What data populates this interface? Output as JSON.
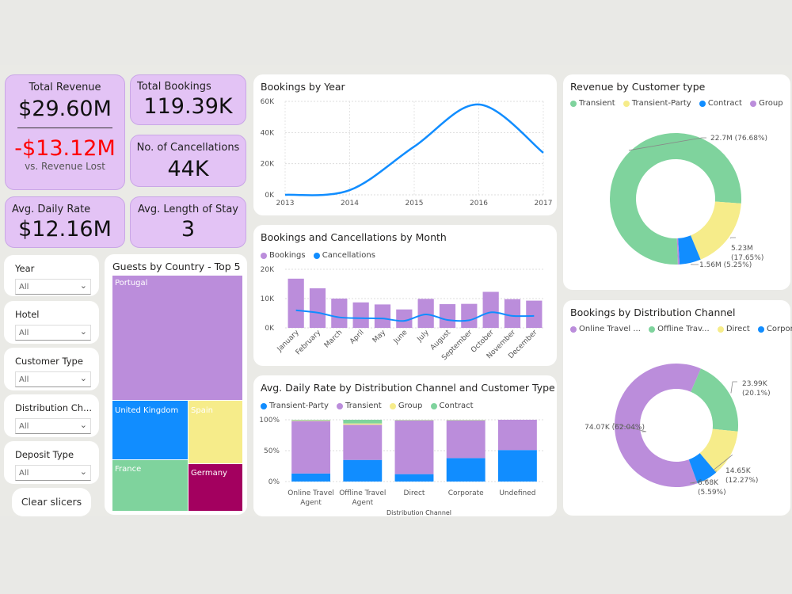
{
  "kpis": {
    "total_revenue": {
      "label": "Total Revenue",
      "value": "$29.60M",
      "sub_value": "-$13.12M",
      "sub_label": "vs. Revenue Lost"
    },
    "total_bookings": {
      "label": "Total Bookings",
      "value": "119.39K"
    },
    "cancellations": {
      "label": "No. of Cancellations",
      "value": "44K"
    },
    "adr": {
      "label": "Avg. Daily Rate",
      "value": "$12.16M"
    },
    "los": {
      "label": "Avg. Length of Stay",
      "value": "3"
    }
  },
  "slicers": [
    {
      "label": "Year",
      "value": "All"
    },
    {
      "label": "Hotel",
      "value": "All"
    },
    {
      "label": "Customer Type",
      "value": "All"
    },
    {
      "label": "Distribution Ch...",
      "value": "All"
    },
    {
      "label": "Deposit Type",
      "value": "All"
    }
  ],
  "clear_button": "Clear slicers",
  "colors": {
    "purple": "#bb8ddb",
    "blue": "#118dff",
    "yellow": "#f6ec8a",
    "green": "#7fd39d",
    "maroon": "#a3005f",
    "negative": "#ff0000"
  },
  "chart_data": [
    {
      "id": "bookings_by_year",
      "type": "line",
      "title": "Bookings by Year",
      "x": [
        "2013",
        "2014",
        "2015",
        "2016",
        "2017"
      ],
      "values": [
        0,
        3000,
        31000,
        58000,
        27000
      ],
      "y_ticks": [
        "0K",
        "20K",
        "40K",
        "60K"
      ],
      "ylim": [
        0,
        60000
      ],
      "grid": true
    },
    {
      "id": "bookings_cancellations_month",
      "type": "bar",
      "title": "Bookings and Cancellations by Month",
      "categories": [
        "January",
        "February",
        "March",
        "April",
        "May",
        "June",
        "July",
        "August",
        "September",
        "October",
        "November",
        "December"
      ],
      "series": [
        {
          "name": "Bookings",
          "values": [
            16800,
            13500,
            10000,
            8700,
            8000,
            6300,
            9900,
            8100,
            8200,
            12300,
            9800,
            9300
          ]
        },
        {
          "name": "Cancellations",
          "values": [
            6000,
            5200,
            3600,
            3300,
            3200,
            2400,
            4600,
            2700,
            2600,
            5300,
            4100,
            4100
          ]
        }
      ],
      "y_ticks": [
        "0K",
        "10K",
        "20K"
      ],
      "ylim": [
        0,
        20000
      ],
      "legend": "top-left"
    },
    {
      "id": "adr_by_channel",
      "type": "bar",
      "stacked": true,
      "title": "Avg. Daily Rate by Distribution Channel and Customer Type",
      "categories": [
        "Online Travel Agent",
        "Offline Travel Agent",
        "Direct",
        "Corporate",
        "Undefined"
      ],
      "category_lines": [
        [
          "Online Travel",
          "Agent"
        ],
        [
          "Offline Travel",
          "Agent"
        ],
        [
          "Direct"
        ],
        [
          "Corporate"
        ],
        [
          "Undefined"
        ]
      ],
      "xlabel": "Distribution Channel",
      "series": [
        {
          "name": "Transient-Party",
          "values": [
            13,
            35,
            12,
            38,
            51
          ]
        },
        {
          "name": "Transient",
          "values": [
            85,
            57,
            87,
            61,
            49
          ]
        },
        {
          "name": "Group",
          "values": [
            1,
            2,
            0.5,
            0.5,
            0
          ]
        },
        {
          "name": "Contract",
          "values": [
            1,
            6,
            0.5,
            0.5,
            0
          ]
        }
      ],
      "y_ticks": [
        "0%",
        "50%",
        "100%"
      ],
      "ylim": [
        0,
        100
      ]
    },
    {
      "id": "guests_by_country",
      "type": "treemap",
      "title": "Guests by Country - Top 5",
      "items": [
        {
          "label": "Portugal",
          "color": "#bb8ddb"
        },
        {
          "label": "United Kingdom",
          "color": "#118dff"
        },
        {
          "label": "Spain",
          "color": "#f6ec8a"
        },
        {
          "label": "France",
          "color": "#7fd39d"
        },
        {
          "label": "Germany",
          "color": "#a3005f"
        }
      ]
    },
    {
      "id": "revenue_by_customer_type",
      "type": "pie",
      "donut": true,
      "title": "Revenue by Customer type",
      "series": [
        {
          "name": "Transient",
          "color": "#7fd39d"
        },
        {
          "name": "Transient-Party",
          "color": "#f6ec8a"
        },
        {
          "name": "Contract",
          "color": "#118dff"
        },
        {
          "name": "Group",
          "color": "#bb8ddb"
        }
      ],
      "slices": [
        {
          "name": "Transient",
          "value": 76.68,
          "label_lines": [
            "22.7M (76.68%)"
          ]
        },
        {
          "name": "Transient-Party",
          "value": 17.65,
          "label_lines": [
            "5.23M",
            "(17.65%)"
          ]
        },
        {
          "name": "Contract",
          "value": 5.25,
          "label_lines": [
            "1.56M (5.25%)"
          ]
        },
        {
          "name": "Group",
          "value": 0.42,
          "label_lines": []
        }
      ]
    },
    {
      "id": "bookings_by_channel",
      "type": "pie",
      "donut": true,
      "title": "Bookings by Distribution Channel",
      "series": [
        {
          "name": "Online Travel ...",
          "color": "#bb8ddb"
        },
        {
          "name": "Offline Trav...",
          "color": "#7fd39d"
        },
        {
          "name": "Direct",
          "color": "#f6ec8a"
        },
        {
          "name": "Corporate",
          "color": "#118dff"
        }
      ],
      "slices": [
        {
          "name": "Online Travel ...",
          "value": 62.04,
          "label_lines": [
            "74.07K (62.04%)"
          ]
        },
        {
          "name": "Offline Trav...",
          "value": 20.1,
          "label_lines": [
            "23.99K",
            "(20.1%)"
          ]
        },
        {
          "name": "Direct",
          "value": 12.27,
          "label_lines": [
            "14.65K",
            "(12.27%)"
          ]
        },
        {
          "name": "Corporate",
          "value": 5.59,
          "label_lines": [
            "6.68K",
            "(5.59%)"
          ]
        }
      ]
    }
  ]
}
